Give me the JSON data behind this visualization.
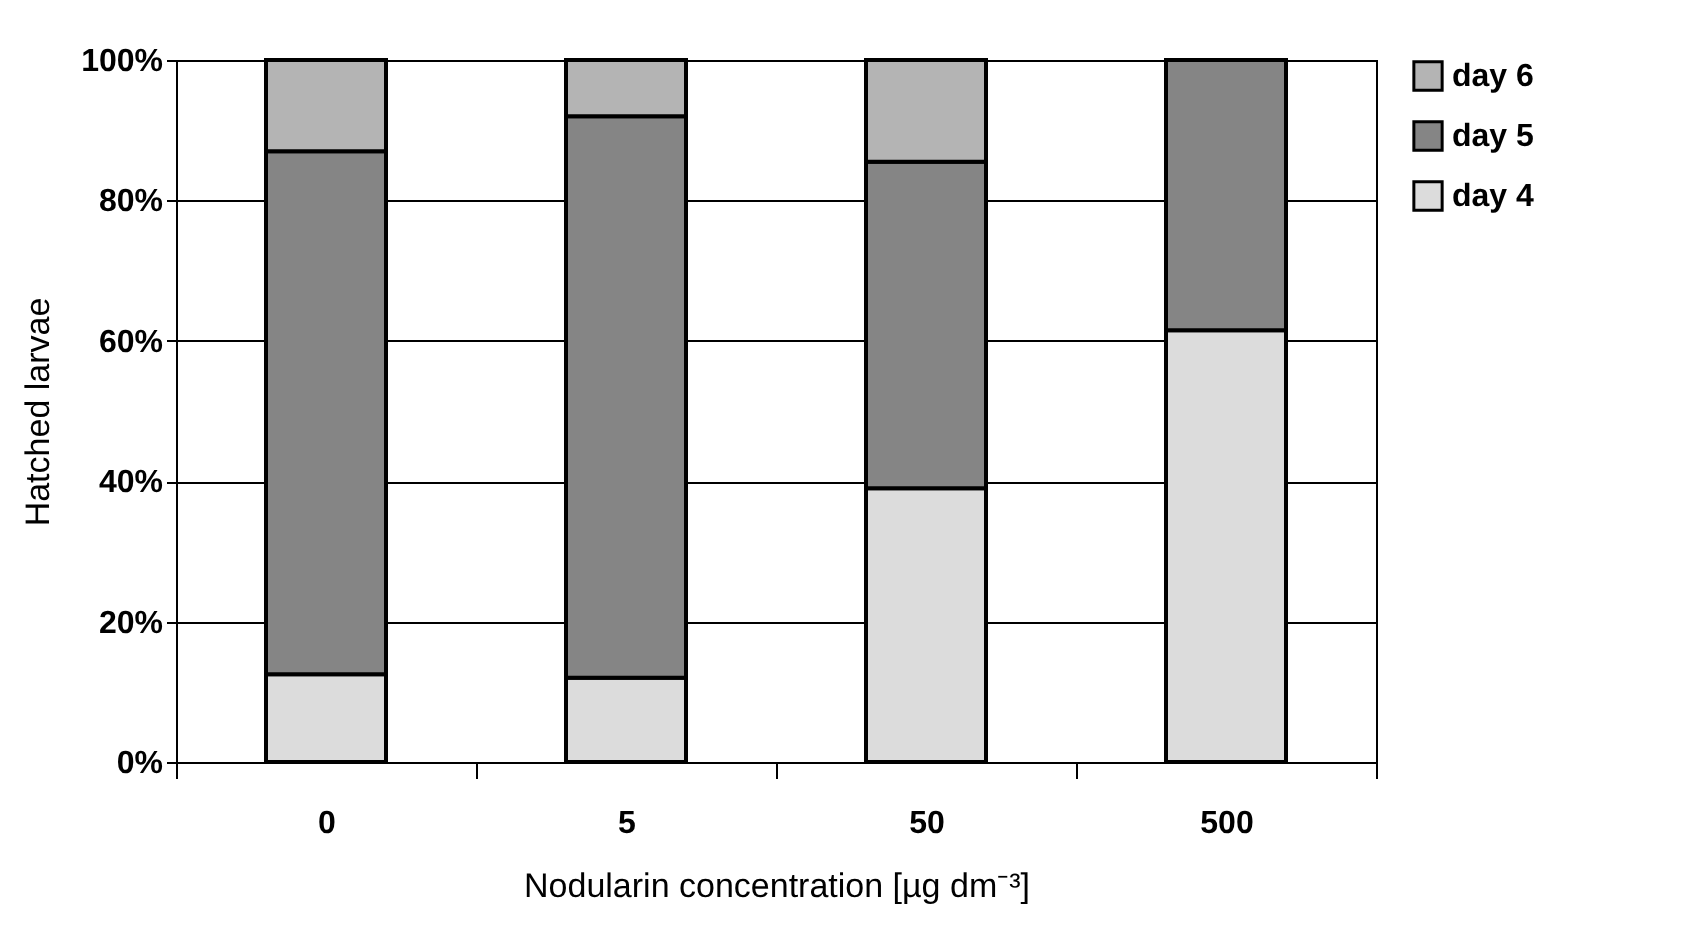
{
  "chart_data": {
    "type": "bar",
    "stacked": true,
    "categories": [
      "0",
      "5",
      "50",
      "500"
    ],
    "series": [
      {
        "name": "day 4",
        "color": "#dcdcdc",
        "values": [
          12.5,
          12,
          39,
          61.5
        ]
      },
      {
        "name": "day 5",
        "color": "#858585",
        "values": [
          74.5,
          80,
          46.5,
          38.5
        ]
      },
      {
        "name": "day 6",
        "color": "#b4b4b4",
        "values": [
          13,
          8,
          14.5,
          null
        ]
      }
    ],
    "xlabel": "Nodularin concentration [µg dm⁻³]",
    "ylabel": "Hatched larvae",
    "ylim": [
      0,
      100
    ],
    "yticks": [
      {
        "value": 0,
        "label": "0%"
      },
      {
        "value": 20,
        "label": "20%"
      },
      {
        "value": 40,
        "label": "40%"
      },
      {
        "value": 60,
        "label": "60%"
      },
      {
        "value": 80,
        "label": "80%"
      },
      {
        "value": 100,
        "label": "100%"
      }
    ],
    "grid": "y",
    "legend": "right"
  }
}
